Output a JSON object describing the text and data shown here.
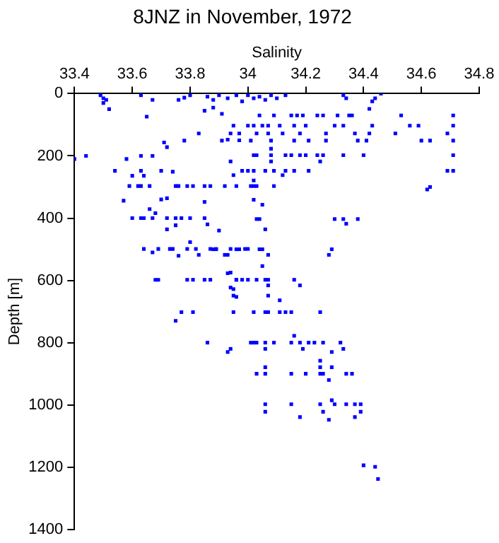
{
  "chart_data": {
    "type": "scatter",
    "title": "8JNZ in November, 1972",
    "xlabel": "Salinity",
    "ylabel": "Depth [m]",
    "xlim": [
      33.4,
      34.8
    ],
    "xticks": [
      33.4,
      33.6,
      33.8,
      34,
      34.2,
      34.4,
      34.6,
      34.8
    ],
    "ylim": [
      1400,
      0
    ],
    "yticks": [
      0,
      200,
      400,
      600,
      800,
      1000,
      1200,
      1400
    ],
    "grid": false,
    "legend": false,
    "marker": "square",
    "series": [
      {
        "color": "#0000ff",
        "x": [
          33.49,
          33.5,
          33.51,
          33.5,
          33.52,
          33.63,
          33.67,
          33.65,
          33.78,
          33.76,
          33.8,
          33.4,
          33.44,
          33.58,
          33.63,
          33.67,
          33.71,
          33.72,
          33.78,
          33.54,
          33.6,
          33.63,
          33.64,
          33.7,
          33.74,
          33.59,
          33.62,
          33.63,
          33.66,
          33.75,
          33.76,
          33.79,
          33.81,
          33.85,
          33.87,
          33.92,
          33.96,
          34.01,
          33.57,
          33.7,
          33.72,
          33.85,
          33.66,
          33.68,
          33.6,
          33.63,
          33.64,
          33.67,
          33.72,
          33.75,
          33.77,
          33.8,
          33.85,
          33.72,
          33.75,
          33.86,
          33.9,
          33.64,
          33.69,
          33.73,
          33.74,
          33.79,
          33.82,
          33.87,
          33.89,
          33.94,
          33.99,
          34.0,
          33.67,
          33.76,
          33.83,
          33.92,
          33.8,
          33.68,
          33.69,
          33.79,
          33.81,
          33.85,
          33.87,
          33.96,
          33.98,
          34.0,
          33.94,
          33.95,
          33.96,
          33.86,
          33.88,
          33.9,
          33.93,
          33.96,
          33.98,
          33.88,
          33.91,
          33.85,
          33.93,
          33.97,
          33.83,
          34.0,
          34.02,
          34.04,
          34.06,
          34.08,
          34.1,
          34.13,
          34.33,
          34.34,
          34.44,
          34.43,
          34.46,
          34.42,
          34.04,
          34.09,
          34.15,
          34.17,
          34.19,
          34.24,
          34.26,
          34.31,
          34.35,
          34.36,
          34.53,
          34.71,
          33.95,
          34.0,
          34.02,
          34.05,
          34.07,
          34.11,
          34.16,
          34.2,
          34.3,
          34.33,
          34.43,
          34.56,
          34.59,
          34.71,
          33.94,
          33.97,
          34.03,
          34.07,
          34.12,
          34.18,
          34.27,
          34.37,
          34.42,
          34.51,
          34.69,
          33.91,
          34.01,
          34.08,
          34.16,
          34.21,
          34.27,
          34.38,
          34.41,
          34.6,
          34.63,
          34.71,
          34.08,
          34.02,
          34.03,
          34.08,
          34.13,
          34.15,
          34.18,
          34.2,
          34.24,
          34.26,
          34.33,
          34.4,
          34.71,
          33.94,
          34.08,
          34.25,
          33.98,
          34.0,
          34.02,
          34.06,
          34.09,
          34.13,
          34.16,
          34.21,
          34.69,
          34.71,
          33.95,
          34.12,
          34.02,
          34.02,
          34.03,
          34.09,
          34.62,
          34.63,
          34.02,
          34.05,
          34.03,
          34.04,
          34.3,
          34.33,
          34.38,
          34.34,
          34.06,
          33.88,
          33.89,
          33.96,
          33.97,
          34.04,
          34.05,
          34.29,
          33.93,
          34.07,
          34.28,
          34.05,
          33.93,
          33.96,
          34.03,
          34.06,
          34.07,
          34.16,
          34.07,
          34.18,
          33.94,
          33.95,
          34.07,
          34.11,
          33.77,
          33.81,
          33.95,
          34.02,
          34.06,
          34.07,
          34.11,
          34.13,
          34.15,
          34.25,
          33.75,
          34.16,
          33.86,
          34.01,
          34.02,
          34.03,
          34.06,
          34.09,
          34.15,
          34.18,
          34.21,
          34.23,
          34.26,
          34.32,
          33.94,
          34.06,
          34.19,
          34.33,
          33.93,
          34.29,
          34.25,
          34.06,
          34.25,
          34.29,
          34.03,
          34.06,
          34.15,
          34.2,
          34.25,
          34.26,
          34.34,
          34.36,
          34.28,
          34.29,
          34.06,
          34.15,
          34.25,
          34.3,
          34.34,
          34.37,
          34.39,
          34.06,
          34.26,
          34.39,
          34.18,
          34.37,
          34.28,
          34.4,
          34.44,
          34.45
        ],
        "values": [
          5,
          15,
          20,
          30,
          50,
          5,
          20,
          74,
          13,
          20,
          5,
          210,
          200,
          210,
          200,
          200,
          157,
          172,
          151,
          248,
          264,
          248,
          264,
          248,
          251,
          297,
          297,
          297,
          297,
          297,
          297,
          297,
          297,
          297,
          297,
          297,
          297,
          297,
          344,
          340,
          336,
          348,
          371,
          384,
          400,
          400,
          400,
          400,
          400,
          400,
          400,
          400,
          400,
          436,
          423,
          420,
          440,
          499,
          499,
          499,
          499,
          499,
          499,
          499,
          499,
          499,
          499,
          499,
          510,
          521,
          518,
          518,
          477,
          598,
          598,
          598,
          598,
          598,
          598,
          598,
          598,
          598,
          575,
          628,
          653,
          10,
          20,
          5,
          15,
          5,
          25,
          45,
          65,
          55,
          148,
          150,
          128,
          5,
          15,
          10,
          20,
          5,
          15,
          5,
          5,
          15,
          15,
          25,
          0,
          49,
          70,
          70,
          70,
          70,
          70,
          70,
          70,
          70,
          70,
          70,
          70,
          70,
          103,
          103,
          103,
          103,
          103,
          103,
          103,
          103,
          103,
          103,
          103,
          103,
          103,
          103,
          128,
          128,
          128,
          128,
          128,
          128,
          128,
          128,
          128,
          128,
          128,
          151,
          151,
          151,
          151,
          151,
          151,
          151,
          151,
          151,
          151,
          151,
          177,
          198,
          198,
          198,
          198,
          198,
          198,
          198,
          198,
          198,
          198,
          198,
          198,
          218,
          218,
          218,
          248,
          248,
          248,
          248,
          248,
          248,
          248,
          248,
          248,
          248,
          262,
          262,
          279,
          297,
          297,
          297,
          308,
          300,
          341,
          357,
          403,
          403,
          403,
          403,
          403,
          418,
          436,
          500,
          500,
          500,
          500,
          500,
          500,
          500,
          518,
          518,
          518,
          554,
          577,
          598,
          598,
          598,
          598,
          598,
          616,
          616,
          623,
          649,
          649,
          664,
          702,
          702,
          702,
          702,
          702,
          702,
          702,
          702,
          702,
          702,
          730,
          778,
          800,
          800,
          800,
          800,
          800,
          800,
          800,
          800,
          800,
          800,
          800,
          800,
          820,
          820,
          820,
          820,
          830,
          830,
          858,
          879,
          879,
          879,
          900,
          900,
          900,
          900,
          900,
          900,
          900,
          900,
          920,
          985,
          998,
          998,
          998,
          998,
          998,
          998,
          998,
          1022,
          1022,
          1022,
          1039,
          1039,
          1048,
          1194,
          1199,
          1238
        ]
      }
    ]
  }
}
